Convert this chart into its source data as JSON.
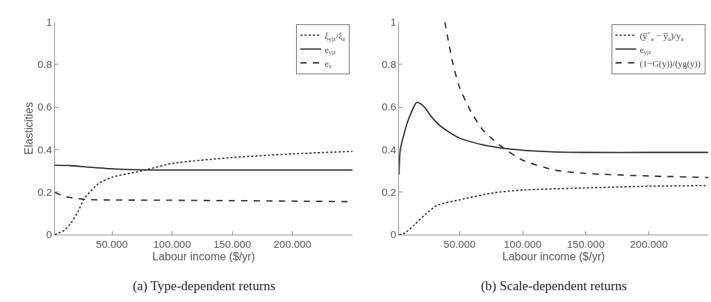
{
  "chart_data": [
    {
      "type": "line",
      "title": "(a) Type-dependent returns",
      "xlabel": "Labour income ($/yr)",
      "ylabel": "Elasticities",
      "xlim": [
        2.5,
        250
      ],
      "ylim": [
        0,
        1
      ],
      "xticks": [
        {
          "value": 50,
          "label": "50.000"
        },
        {
          "value": 100,
          "label": "100.000"
        },
        {
          "value": 150,
          "label": "150.000"
        },
        {
          "value": 200,
          "label": "200.000"
        }
      ],
      "yticks": [
        0,
        0.2,
        0.4,
        0.6,
        0.8,
        1
      ],
      "legend": "top right",
      "series": [
        {
          "name": "ξ$_{y|z}$/ξ$_{z}$",
          "color": "#222222",
          "line_style": "dotted",
          "x": [
            2.5,
            10.3,
            16,
            21.7,
            27.1,
            38.8,
            50,
            74.8,
            100,
            150,
            200,
            250
          ],
          "values": [
            0,
            0.02,
            0.055,
            0.107,
            0.17,
            0.24,
            0.27,
            0.3,
            0.335,
            0.363,
            0.38,
            0.392
          ]
        },
        {
          "name": "e$_{y|z}$",
          "color": "#222222",
          "line_style": "solid",
          "x": [
            2.5,
            15,
            30,
            50,
            75,
            100,
            150,
            200,
            250
          ],
          "values": [
            0.326,
            0.325,
            0.318,
            0.31,
            0.305,
            0.304,
            0.304,
            0.304,
            0.304
          ]
        },
        {
          "name": "e$_{z}$",
          "color": "#222222",
          "line_style": "dashed",
          "x": [
            2.5,
            8,
            15,
            30,
            50,
            100,
            150,
            200,
            250
          ],
          "values": [
            0.2,
            0.185,
            0.175,
            0.165,
            0.163,
            0.162,
            0.16,
            0.158,
            0.155
          ]
        }
      ]
    },
    {
      "type": "line",
      "title": "(b) Scale-dependent returns",
      "xlabel": "Labour income ($/yr)",
      "xlim": [
        2,
        247
      ],
      "ylim": [
        0,
        1
      ],
      "xticks": [
        {
          "value": 50,
          "label": "50.000"
        },
        {
          "value": 100,
          "label": "100.000"
        },
        {
          "value": 150,
          "label": "150.000"
        },
        {
          "value": 200,
          "label": "200.000"
        }
      ],
      "yticks": [
        0,
        0.2,
        0.4,
        0.6,
        0.8,
        1
      ],
      "legend": "top right",
      "series": [
        {
          "name": "(y̅$^{+}$$_{a}$ − y̅$_{a}$)/y$_{a}$",
          "color": "#222222",
          "line_style": "dotted",
          "x": [
            2,
            6.7,
            13.9,
            23,
            32,
            50,
            77,
            100,
            150,
            200,
            247
          ],
          "values": [
            0,
            0.008,
            0.045,
            0.096,
            0.138,
            0.164,
            0.197,
            0.21,
            0.22,
            0.228,
            0.231
          ]
        },
        {
          "name": "e$_{y|z}$",
          "color": "#222222",
          "line_style": "solid",
          "x": [
            2,
            3,
            8.5,
            13.9,
            16,
            18.4,
            23,
            26.5,
            33.8,
            41,
            50,
            68,
            86,
            100,
            122,
            150,
            200,
            247
          ],
          "values": [
            0.283,
            0.4,
            0.526,
            0.604,
            0.622,
            0.618,
            0.594,
            0.563,
            0.516,
            0.485,
            0.454,
            0.423,
            0.405,
            0.397,
            0.39,
            0.387,
            0.387,
            0.387
          ]
        },
        {
          "name": "(1−G(y))/(yg(y))",
          "color": "#222222",
          "line_style": "dashed",
          "x": [
            38.3,
            44.6,
            50,
            59,
            68,
            77,
            86,
            100,
            125,
            150,
            200,
            247
          ],
          "values": [
            1.0,
            0.806,
            0.692,
            0.578,
            0.495,
            0.444,
            0.402,
            0.35,
            0.304,
            0.288,
            0.276,
            0.269
          ]
        }
      ]
    }
  ]
}
